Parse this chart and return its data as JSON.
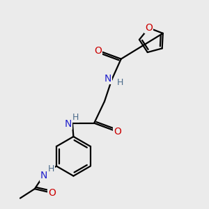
{
  "bg_color": "#ebebeb",
  "atom_colors": {
    "C": "#000000",
    "N": "#2020cc",
    "O": "#cc0000",
    "H": "#4a6a8a"
  },
  "line_color": "#000000",
  "line_width": 1.6,
  "font_size_atom": 10,
  "fig_size": [
    3.0,
    3.0
  ],
  "dpi": 100
}
